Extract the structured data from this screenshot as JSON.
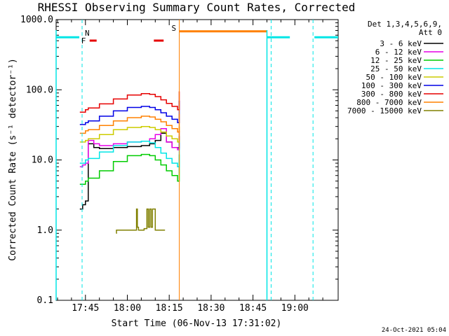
{
  "chart_data": {
    "type": "line",
    "title": "RHESSI Observing Summary Count Rates, Corrected",
    "xlabel": "Start Time (06-Nov-13 17:31:02)",
    "ylabel": "Corrected Count Rate (s⁻¹ detector⁻¹)",
    "ylog": true,
    "ylim": [
      0.1,
      1000.0
    ],
    "xlim_min": [
      -25.5,
      75.5
    ],
    "x_unit": "minutes after 18:00 UT",
    "yticks": [
      "1000.0",
      "100.0",
      "10.0",
      "1.0",
      "0.1"
    ],
    "xticks": [
      {
        "min": -15,
        "label": "17:45"
      },
      {
        "min": 0,
        "label": "18:00"
      },
      {
        "min": 15,
        "label": "18:15"
      },
      {
        "min": 30,
        "label": "18:30"
      },
      {
        "min": 45,
        "label": "18:45"
      },
      {
        "min": 60,
        "label": "19:00"
      }
    ],
    "legend_title": [
      "Det 1,3,4,5,6,9,",
      "Att 0"
    ],
    "legend_position": "right",
    "series": [
      {
        "name": "3 - 6 keV",
        "color": "#000000",
        "x": [
          -17,
          -16,
          -15,
          -14,
          -12,
          -10,
          -5,
          0,
          5,
          8,
          10,
          12,
          14,
          16,
          18,
          18.6
        ],
        "y": [
          2.0,
          2.3,
          2.6,
          17,
          15,
          14.5,
          15,
          15.5,
          16,
          17,
          19,
          24,
          18,
          15,
          14.8,
          22
        ]
      },
      {
        "name": "6 - 12 keV",
        "color": "#e600e6",
        "x": [
          -17,
          -16,
          -15,
          -14,
          -12,
          -10,
          -5,
          0,
          5,
          8,
          10,
          12,
          14,
          16,
          18,
          18.6
        ],
        "y": [
          8,
          8.5,
          9,
          19,
          17,
          16,
          17,
          18,
          18.5,
          20,
          23,
          28,
          18,
          15,
          14,
          26
        ]
      },
      {
        "name": "12 - 25 keV",
        "color": "#00cc00",
        "x": [
          -17,
          -15,
          -14,
          -10,
          -5,
          0,
          5,
          8,
          10,
          12,
          14,
          16,
          18,
          18.6
        ],
        "y": [
          4.5,
          5,
          5.5,
          7,
          9.5,
          11.5,
          12,
          11.5,
          10,
          8.5,
          7,
          6,
          5,
          12
        ]
      },
      {
        "name": "25 - 50 keV",
        "color": "#00e6e6",
        "x": [
          -17,
          -15,
          -14,
          -10,
          -5,
          0,
          5,
          8,
          10,
          12,
          14,
          16,
          18,
          18.6
        ],
        "y": [
          9,
          10,
          10.5,
          13,
          16,
          18,
          18.5,
          17.5,
          15,
          12.5,
          10.5,
          9,
          8,
          19
        ]
      },
      {
        "name": "50 - 100 keV",
        "color": "#cccc00",
        "x": [
          -17,
          -15,
          -14,
          -10,
          -5,
          0,
          5,
          8,
          10,
          12,
          14,
          16,
          18,
          18.6
        ],
        "y": [
          18,
          19,
          20,
          23,
          27,
          29,
          30,
          29,
          27,
          25,
          22,
          20,
          18,
          30
        ]
      },
      {
        "name": "100 - 300 keV",
        "color": "#0000e6",
        "x": [
          -17,
          -15,
          -14,
          -10,
          -5,
          0,
          5,
          8,
          10,
          12,
          14,
          16,
          18,
          18.6
        ],
        "y": [
          32,
          34,
          36,
          42,
          50,
          56,
          58,
          56,
          52,
          47,
          42,
          38,
          34,
          70
        ]
      },
      {
        "name": "300 - 800 keV",
        "color": "#e60000",
        "x": [
          -17,
          -15,
          -14,
          -10,
          -5,
          0,
          5,
          8,
          10,
          12,
          14,
          16,
          18,
          18.6
        ],
        "y": [
          48,
          52,
          55,
          63,
          74,
          84,
          88,
          86,
          80,
          72,
          64,
          58,
          52,
          95
        ]
      },
      {
        "name": "800 - 7000 keV",
        "color": "#ff8000",
        "x": [
          -17,
          -15,
          -14,
          -10,
          -5,
          0,
          5,
          8,
          10,
          12,
          14,
          16,
          18,
          18.6
        ],
        "y": [
          24,
          26,
          27,
          31,
          36,
          40,
          42,
          41,
          38,
          35,
          31,
          28,
          25,
          45
        ]
      },
      {
        "name": "7000 - 15000 keV",
        "color": "#808000",
        "x": [
          -4,
          -3.9,
          3,
          3.3,
          3.6,
          4,
          4.5,
          6,
          7,
          7.5,
          8,
          8.5,
          9,
          10,
          13.5
        ],
        "y": [
          0.9,
          1.0,
          1.0,
          2.0,
          1.1,
          1.0,
          1.0,
          1.05,
          2.0,
          1.1,
          2.0,
          1.1,
          2.0,
          1.0,
          1.0
        ]
      }
    ],
    "flags": {
      "eclipse_bars": [
        {
          "x0": -25.5,
          "x1": -17.2,
          "y": 560
        },
        {
          "x0": 50.0,
          "x1": 58.2,
          "y": 560
        },
        {
          "x0": 67.0,
          "x1": 75.5,
          "y": 560
        }
      ],
      "saa_bar": {
        "label": "S",
        "x0": 18.6,
        "x1": 50.0,
        "y": 680
      },
      "flare_label": "F",
      "flare_bars": [
        {
          "x0": -13.5,
          "x1": -11.0
        },
        {
          "x0": 9.5,
          "x1": 13.0
        }
      ],
      "night_label": "N",
      "night_dashed_x": [
        -16.2,
        51.5,
        66.5
      ],
      "day_lines_x": [
        -25.5,
        50.0
      ],
      "saa_line_x": 18.6
    },
    "timestamp": "24-Oct-2021 05:04"
  }
}
